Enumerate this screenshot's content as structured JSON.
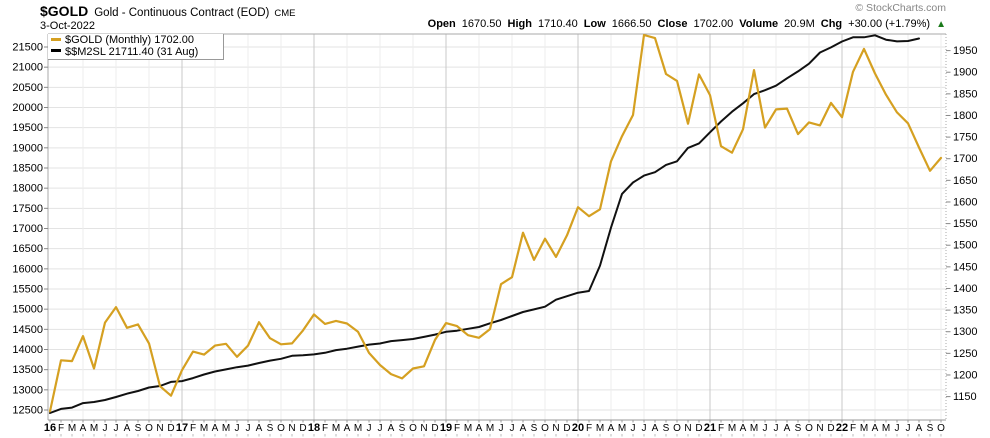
{
  "header": {
    "symbol": "$GOLD",
    "description": "Gold - Continuous Contract (EOD)",
    "exchange": "CME",
    "date": "3-Oct-2022",
    "copyright": "© StockCharts.com",
    "quote": {
      "open_label": "Open",
      "open": "1670.50",
      "high_label": "High",
      "high": "1710.40",
      "low_label": "Low",
      "low": "1666.50",
      "close_label": "Close",
      "close": "1702.00",
      "volume_label": "Volume",
      "volume": "20.9M",
      "chg_label": "Chg",
      "chg": "+30.00 (+1.79%)"
    }
  },
  "icons": {
    "up_triangle": "▲"
  },
  "legend": [
    {
      "label": "$GOLD (Monthly) 1702.00",
      "color": "#d5a021"
    },
    {
      "label": "$$M2SL 21711.40 (31 Aug)",
      "color": "#000000"
    }
  ],
  "colors": {
    "gold_line": "#d5a021",
    "m2_line": "#111111",
    "grid_h": "#e3e3e3",
    "grid_quarter": "#ededed",
    "grid_year": "#c9c9c9",
    "border": "#aaaaaa",
    "tick": "#888888",
    "subtick": "#bbbbbb",
    "up_green": "#1a7a1a"
  },
  "chart_data": {
    "type": "line",
    "title": "$GOLD Gold - Continuous Contract (EOD) CME",
    "x_range": "Jan 2016 - Oct 2022 (monthly)",
    "grid": true,
    "legend_position": "top-left",
    "x_labels": [
      "16",
      "F",
      "M",
      "A",
      "M",
      "J",
      "J",
      "A",
      "S",
      "O",
      "N",
      "D",
      "17",
      "F",
      "M",
      "A",
      "M",
      "J",
      "J",
      "A",
      "S",
      "O",
      "N",
      "D",
      "18",
      "F",
      "M",
      "A",
      "M",
      "J",
      "J",
      "A",
      "S",
      "O",
      "N",
      "D",
      "19",
      "F",
      "M",
      "A",
      "M",
      "J",
      "J",
      "A",
      "S",
      "O",
      "N",
      "D",
      "20",
      "F",
      "M",
      "A",
      "M",
      "J",
      "J",
      "A",
      "S",
      "O",
      "N",
      "D",
      "21",
      "F",
      "M",
      "A",
      "M",
      "J",
      "J",
      "A",
      "S",
      "O",
      "N",
      "D",
      "22",
      "F",
      "M",
      "A",
      "M",
      "J",
      "J",
      "A",
      "S",
      "O"
    ],
    "left_axis": {
      "title": "$$M2SL",
      "min": 12500,
      "max": 21500,
      "step": 500,
      "labels": [
        "21500",
        "21000",
        "20500",
        "20000",
        "19500",
        "19000",
        "18500",
        "18000",
        "17500",
        "17000",
        "16500",
        "16000",
        "15500",
        "15000",
        "14500",
        "14000",
        "13500",
        "13000",
        "12500"
      ]
    },
    "right_axis": {
      "title": "$GOLD",
      "min": 1150,
      "max": 1950,
      "step": 50,
      "labels": [
        "1950",
        "1900",
        "1850",
        "1800",
        "1750",
        "1700",
        "1650",
        "1600",
        "1550",
        "1500",
        "1450",
        "1400",
        "1350",
        "1300",
        "1250",
        "1200",
        "1150"
      ]
    },
    "series": [
      {
        "name": "$GOLD (Monthly)",
        "axis": "right",
        "color": "#d5a021",
        "last_value": 1702.0,
        "values": [
          1116,
          1234,
          1232,
          1290,
          1215,
          1321,
          1357,
          1309,
          1317,
          1273,
          1174,
          1152,
          1211,
          1254,
          1247,
          1268,
          1272,
          1242,
          1268,
          1322,
          1285,
          1271,
          1273,
          1303,
          1340,
          1318,
          1325,
          1319,
          1300,
          1251,
          1223,
          1202,
          1192,
          1215,
          1220,
          1281,
          1320,
          1313,
          1292,
          1286,
          1306,
          1410,
          1426,
          1529,
          1466,
          1515,
          1473,
          1523,
          1588,
          1567,
          1583,
          1694,
          1752,
          1801,
          1986,
          1979,
          1896,
          1880,
          1781,
          1895,
          1847,
          1729,
          1714,
          1768,
          1905,
          1772,
          1814,
          1816,
          1757,
          1784,
          1777,
          1829,
          1796,
          1901,
          1954,
          1897,
          1848,
          1807,
          1782,
          1726,
          1672,
          1702
        ]
      },
      {
        "name": "$$M2SL",
        "axis": "left",
        "color": "#111111",
        "last_value": 21711.4,
        "values": [
          12425,
          12527,
          12560,
          12672,
          12698,
          12747,
          12823,
          12905,
          12971,
          13058,
          13095,
          13197,
          13216,
          13291,
          13381,
          13455,
          13507,
          13561,
          13602,
          13666,
          13726,
          13769,
          13843,
          13855,
          13879,
          13917,
          13984,
          14020,
          14073,
          14122,
          14148,
          14209,
          14232,
          14260,
          14312,
          14370,
          14440,
          14467,
          14512,
          14559,
          14649,
          14731,
          14830,
          14930,
          14994,
          15060,
          15234,
          15321,
          15408,
          15451,
          16080,
          17023,
          17858,
          18140,
          18312,
          18395,
          18577,
          18665,
          18999,
          19110,
          19384,
          19654,
          19896,
          20105,
          20332,
          20430,
          20540,
          20723,
          20894,
          21085,
          21363,
          21489,
          21636,
          21740,
          21740,
          21790,
          21680,
          21640,
          21650,
          21711.4
        ]
      }
    ]
  }
}
